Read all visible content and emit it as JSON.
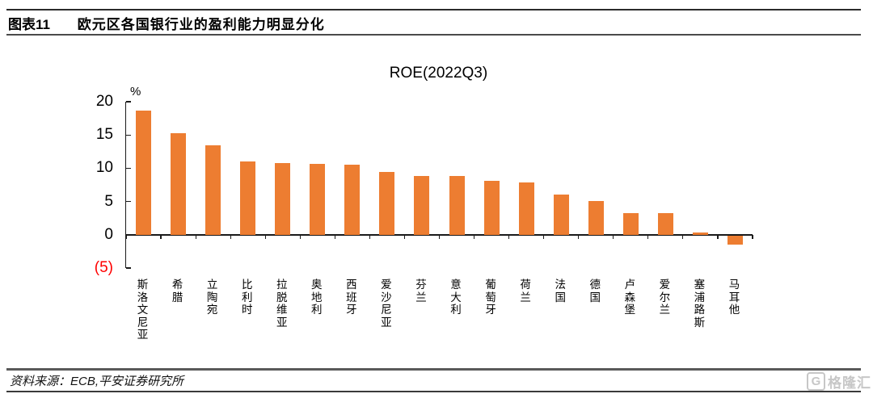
{
  "header": {
    "figure_label": "图表11",
    "title": "欧元区各国银行业的盈利能力明显分化"
  },
  "chart_data": {
    "type": "bar",
    "title": "ROE(2022Q3)",
    "unit_label": "%",
    "categories": [
      "斯洛文尼亚",
      "希腊",
      "立陶宛",
      "比利时",
      "拉脱维亚",
      "奥地利",
      "西班牙",
      "爱沙尼亚",
      "芬兰",
      "意大利",
      "葡萄牙",
      "荷兰",
      "法国",
      "德国",
      "卢森堡",
      "爱尔兰",
      "塞浦路斯",
      "马耳他"
    ],
    "values": [
      18.7,
      15.3,
      13.5,
      11.0,
      10.8,
      10.7,
      10.5,
      9.4,
      8.8,
      8.8,
      8.1,
      7.9,
      6.0,
      5.1,
      3.3,
      3.2,
      0.3,
      -1.4
    ],
    "ylabel": "",
    "xlabel": "",
    "ylim": [
      -5,
      20
    ],
    "yticks": [
      20,
      15,
      10,
      5,
      0,
      -5
    ],
    "ytick_labels": [
      "20",
      "15",
      "10",
      "5",
      "0",
      "(5)"
    ],
    "bar_color": "#ED7D31",
    "negative_tick_color": "#ff0000",
    "axis_color": "#1a1a1a",
    "grid": false,
    "legend": "none"
  },
  "footer": {
    "source": "资料来源：ECB,平安证券研究所"
  },
  "watermark": {
    "letter": "G",
    "text": "格隆汇"
  }
}
